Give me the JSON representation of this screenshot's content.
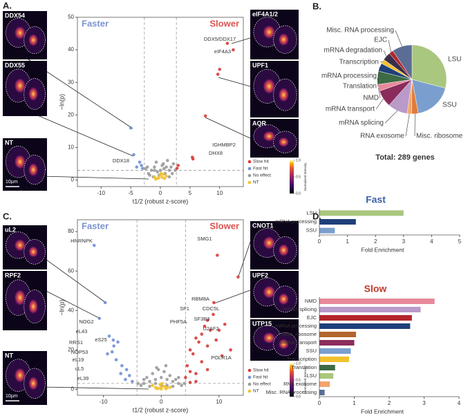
{
  "panel_labels": [
    "A.",
    "B.",
    "C.",
    "D."
  ],
  "images": [
    {
      "label": "DDX54"
    },
    {
      "label": "DDX55"
    },
    {
      "label": "NT",
      "scale": "10µm"
    },
    {
      "label": "eIF4A1/2"
    },
    {
      "label": "UPF1"
    },
    {
      "label": "AQR"
    },
    {
      "label": "uL2"
    },
    {
      "label": "RPF2"
    },
    {
      "label": "NT",
      "scale": "10µm"
    },
    {
      "label": "CNOT1"
    },
    {
      "label": "UPF2"
    },
    {
      "label": "UTP15"
    }
  ],
  "colorbar": {
    "title": "Normalized Intensity",
    "ticks": [
      {
        "value": 0,
        "label": "0.0"
      },
      {
        "value": 0.5,
        "label": "0.5"
      },
      {
        "value": 1,
        "label": "1.0"
      }
    ]
  },
  "chart_data": [
    {
      "type": "scatter",
      "left_label": "Faster",
      "right_label": "Slower",
      "xlabel": "t1/2 (robust z-score)",
      "ylabel": "−ln(p)",
      "xlim": [
        -14,
        14
      ],
      "ylim": [
        -2,
        50
      ],
      "xticks": [
        -10,
        -5,
        0,
        5,
        10
      ],
      "yticks": [
        0,
        10,
        20,
        30,
        40,
        50
      ],
      "thresholds": {
        "x": [
          -2.7,
          2.7
        ],
        "y": 3
      },
      "legend": "lower right",
      "series": [
        {
          "name": "Slow hit",
          "color": "#d93a3a",
          "x": [
            11.3,
            12.3,
            10,
            9.7,
            7.6,
            5.4,
            5.5,
            3,
            2.8
          ],
          "values": [
            42,
            40,
            34,
            32.5,
            19.7,
            7,
            6.5,
            4.5,
            3.6
          ]
        },
        {
          "name": "Fast hit",
          "color": "#6f8fd6",
          "x": [
            -5,
            -4.5,
            -3.5,
            -3.2,
            -4,
            -3
          ],
          "values": [
            16,
            7.8,
            5.5,
            4.5,
            4,
            3.6
          ]
        },
        {
          "name": "No effect",
          "color": "#9a9a9a",
          "x": [
            -2,
            -1.5,
            -1,
            -0.5,
            0,
            0.5,
            1,
            1.5,
            2,
            -2.5,
            2.5,
            -1.8,
            1.2,
            0.3,
            -0.7,
            0.8,
            -1.2,
            1.8,
            -0.2,
            0.6,
            2.2,
            -2.2,
            1.5,
            -1
          ],
          "values": [
            2,
            3,
            4,
            2.5,
            3,
            5,
            4,
            3,
            2,
            3.5,
            3,
            1.5,
            6,
            4.5,
            5.5,
            2,
            1,
            4,
            1.5,
            3.5,
            5,
            4,
            1,
            3
          ]
        },
        {
          "name": "NT",
          "color": "#f2c12e",
          "x": [
            -1,
            -0.5,
            0,
            0.3,
            0.7,
            1,
            -0.8,
            0.1,
            0.5,
            -0.3
          ],
          "values": [
            1,
            0.5,
            1.5,
            0.8,
            0.5,
            1.2,
            0.3,
            2,
            1.8,
            0.7
          ]
        }
      ],
      "annotations": [
        "DDX5/DDX17",
        "eIF4A3",
        "IGHMBP2",
        "DHX8",
        "DDX18"
      ]
    },
    {
      "type": "pie",
      "subtitle": "Total: 289 genes",
      "categories": [
        "LSU",
        "SSU",
        "Misc. ribosome",
        "RNA exosome",
        "mRNA splicing",
        "mRNA transport",
        "NMD",
        "Translation",
        "mRNA processing",
        "Transcription",
        "mRNA degradation",
        "EJC",
        "Misc. RNA processing"
      ],
      "values": [
        84,
        52,
        9,
        6,
        27,
        23,
        9,
        18,
        11,
        6,
        11,
        6,
        27
      ],
      "colors": [
        "#a9c77e",
        "#7a9fcf",
        "#e07b39",
        "#f4a46c",
        "#b99ac9",
        "#8b2d5c",
        "#e8899a",
        "#3d6b45",
        "#1f3f7a",
        "#f2c12e",
        "#3b2e4a",
        "#b3262b",
        "#5b6d95"
      ]
    },
    {
      "type": "scatter",
      "left_label": "Faster",
      "right_label": "Slower",
      "xlabel": "t1/2 (robust z-score)",
      "ylabel": "−ln(p)",
      "xlim": [
        -14.5,
        14.2
      ],
      "ylim": [
        -3,
        86
      ],
      "xticks": [
        -10,
        0,
        10
      ],
      "yticks": [
        0,
        20,
        40,
        60,
        80
      ],
      "thresholds": {
        "x": [
          -4.2,
          4.2
        ],
        "y": 3
      },
      "legend": "lower right",
      "series": [
        {
          "name": "Slow hit",
          "color": "#d93a3a",
          "x": [
            5,
            6,
            7,
            7.5,
            8,
            8.5,
            9,
            6.5,
            5.5,
            4.5,
            5,
            4.2,
            6,
            7,
            8,
            9.5,
            10,
            11,
            12,
            10.5,
            8,
            6,
            5,
            9.7,
            13.3,
            9.1
          ],
          "values": [
            20,
            26,
            28,
            32,
            35,
            30,
            38,
            24,
            18,
            12,
            9,
            6,
            8,
            14,
            22,
            25,
            30,
            33,
            20,
            17,
            10,
            4,
            3.5,
            68,
            57,
            44
          ]
        },
        {
          "name": "Fast hit",
          "color": "#6f8fd6",
          "x": [
            -11.6,
            -9.7,
            -10.7,
            -9,
            -8.3,
            -7.5,
            -8.2,
            -8.5,
            -9.3,
            -7.8,
            -6.8,
            -6,
            -5.5,
            -6.2,
            -5,
            -7
          ],
          "values": [
            73,
            44,
            36,
            27,
            25,
            24,
            22,
            19,
            18,
            15,
            12,
            10,
            7,
            5,
            4,
            8
          ]
        },
        {
          "name": "No effect",
          "color": "#9a9a9a",
          "x": [
            -3,
            -2,
            -1,
            0,
            1,
            2,
            3,
            -3.5,
            3.5,
            -1.5,
            1.5,
            -0.5,
            0.5,
            2.5,
            -2.5,
            0,
            1,
            -1,
            2,
            -2,
            3,
            -3,
            0.8,
            -0.8,
            4,
            -4
          ],
          "values": [
            3,
            4,
            5,
            6,
            5,
            4,
            3,
            2,
            2,
            8,
            7,
            10,
            9,
            5,
            6,
            2,
            2,
            3,
            1.5,
            1.5,
            6,
            5,
            12,
            11,
            3,
            3
          ]
        },
        {
          "name": "NT",
          "color": "#f2c12e",
          "x": [
            -1,
            -0.5,
            0,
            0.5,
            1,
            -1.5,
            1.5,
            0.2,
            -0.2,
            0.8,
            -0.8,
            0
          ],
          "values": [
            1,
            0.5,
            1,
            1.5,
            0.8,
            2,
            1,
            3,
            2.5,
            0.3,
            0.4,
            0.2
          ]
        }
      ],
      "annotations": [
        "HNRNPK",
        "SMG1",
        "NOG2",
        "eL43",
        "eS25",
        "RRS1",
        "NOP53",
        "eL19",
        "uL5",
        "eL39",
        "RBM8A",
        "SF1",
        "CDC5L",
        "SF3B3",
        "PHF5A",
        "U2AF2",
        "POLR1A"
      ]
    },
    {
      "type": "barh",
      "title": "Fast",
      "title_color": "#3d5fa8",
      "xlabel": "Fold Enrichment",
      "xlim": [
        0,
        5
      ],
      "xticks": [
        0,
        1,
        2,
        3,
        4,
        5
      ],
      "categories": [
        "LSU",
        "mRNA processing",
        "SSU"
      ],
      "values": [
        3.0,
        1.3,
        0.55
      ],
      "colors": [
        "#a9c77e",
        "#1f3f7a",
        "#7a9fcf"
      ]
    },
    {
      "type": "barh",
      "title": "Slow",
      "title_color": "#c0392b",
      "xlabel": "Fold Enrichment",
      "xlim": [
        0,
        4
      ],
      "xticks": [
        0,
        1,
        2,
        3,
        4
      ],
      "categories": [
        "NMD",
        "mRNA splicing",
        "EJC",
        "mRNA processing",
        "Misc. ribosome",
        "mRNA transport",
        "SSU",
        "Transcription",
        "Translation",
        "LSU",
        "RNA exosome",
        "Misc. RNA processing"
      ],
      "values": [
        3.3,
        2.9,
        2.65,
        2.6,
        1.05,
        1.0,
        0.9,
        0.85,
        0.45,
        0.4,
        0.3,
        0.15
      ],
      "colors": [
        "#e8899a",
        "#b99ac9",
        "#b3262b",
        "#1f3f7a",
        "#b5652e",
        "#8b2d5c",
        "#7a9fcf",
        "#f2c12e",
        "#3d6b45",
        "#a9c77e",
        "#f4a46c",
        "#5b6d95"
      ]
    }
  ]
}
